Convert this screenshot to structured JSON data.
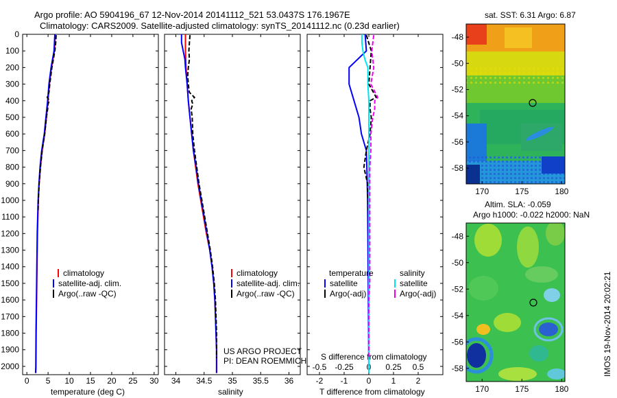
{
  "header": {
    "line1": "Argo profile: AO 5904196_67 12-Nov-2014 20141112_521 53.0437S 176.1967E",
    "line2": "Climatology: CARS2009. Satellite-adjusted climatology: synTS_20141112.nc (0.23d earlier)"
  },
  "colors": {
    "climatology": "#ff0000",
    "satellite_adj": "#0000ff",
    "argo": "#000000",
    "salinity_satellite": "#00e5ee",
    "salinity_argo": "#ee00ee"
  },
  "legend_temp": [
    "climatology",
    "satellite-adj. clim.",
    "Argo(..raw -QC)"
  ],
  "legend_sal": [
    "climatology",
    "satellite-adj. clim.",
    "Argo(..raw -QC)"
  ],
  "legend_diff": {
    "temp_header": "temperature",
    "sal_header": "salinity",
    "temp_items": [
      "satellite",
      "Argo(-adj)"
    ],
    "sal_items": [
      "satellite",
      "Argo(-adj)"
    ]
  },
  "credit": {
    "line1": "US ARGO PROJECT",
    "line2": "PI: DEAN ROEMMICH"
  },
  "sst_title": "sat. SST: 6.31  Argo: 6.87",
  "sla_title1": "Altim. SLA: -0.059",
  "sla_title2": "Argo h1000: -0.022 h2000: NaN",
  "stamp": "IMOS 19-Nov-2014 20:02:21",
  "depth_ticks": [
    "0",
    "100",
    "200",
    "300",
    "400",
    "500",
    "600",
    "700",
    "800",
    "900",
    "1000",
    "1100",
    "1200",
    "1300",
    "1400",
    "1500",
    "1600",
    "1700",
    "1800",
    "1900",
    "2000"
  ],
  "chart_data": [
    {
      "type": "line",
      "ylim": [
        0,
        2050
      ],
      "xlim": [
        -1,
        31
      ],
      "xlabel": "temperature (deg C)",
      "xticks": [
        0,
        5,
        10,
        15,
        20,
        25,
        30
      ],
      "series": [
        {
          "name": "climatology",
          "depth": [
            0,
            100,
            200,
            300,
            400,
            500,
            600,
            700,
            800,
            900,
            1000,
            1200,
            1400,
            1600,
            1800,
            2000,
            2040
          ],
          "values": [
            6.7,
            6.5,
            5.8,
            5.3,
            5.0,
            4.6,
            4.2,
            3.6,
            3.2,
            2.9,
            2.7,
            2.5,
            2.4,
            2.3,
            2.2,
            2.15,
            2.1
          ]
        },
        {
          "name": "satellite-adj. clim.",
          "depth": [
            0,
            100,
            200,
            300,
            400,
            500,
            600,
            700,
            800,
            900,
            1000,
            1200,
            1400,
            1600,
            1800,
            2000,
            2040
          ],
          "values": [
            6.6,
            6.4,
            5.7,
            5.2,
            4.9,
            4.5,
            4.1,
            3.5,
            3.1,
            2.85,
            2.65,
            2.45,
            2.35,
            2.25,
            2.15,
            2.1,
            2.05
          ]
        },
        {
          "name": "Argo(..raw -QC)",
          "depth": [
            5,
            50,
            100,
            200,
            300,
            350,
            380,
            400,
            420,
            450,
            500,
            600,
            700,
            800,
            900,
            1000,
            1060
          ],
          "values": [
            6.9,
            6.8,
            6.6,
            5.9,
            5.4,
            5.2,
            4.8,
            5.3,
            5.0,
            4.9,
            4.6,
            4.2,
            3.6,
            3.2,
            2.9,
            2.7,
            2.65
          ]
        }
      ]
    },
    {
      "type": "line",
      "ylim": [
        0,
        2050
      ],
      "xlim": [
        33.8,
        36.2
      ],
      "xlabel": "salinity",
      "xticks": [
        34,
        34.5,
        35,
        35.5,
        36
      ],
      "series": [
        {
          "name": "climatology",
          "depth": [
            0,
            100,
            200,
            300,
            400,
            500,
            600,
            700,
            800,
            900,
            1000,
            1100,
            1200,
            1300,
            1400,
            1500,
            1600,
            1700,
            1800,
            1900,
            2000,
            2040
          ],
          "values": [
            34.17,
            34.17,
            34.18,
            34.2,
            34.22,
            34.25,
            34.28,
            34.31,
            34.35,
            34.39,
            34.44,
            34.49,
            34.54,
            34.6,
            34.64,
            34.67,
            34.69,
            34.7,
            34.71,
            34.72,
            34.72,
            34.72
          ]
        },
        {
          "name": "satellite-adj. clim.",
          "depth": [
            0,
            50,
            100,
            150,
            200,
            300,
            400,
            500,
            600,
            700,
            800,
            900,
            1000,
            1100,
            1200,
            1300,
            1400,
            1500,
            1600,
            1700,
            1800,
            1900,
            2000,
            2040
          ],
          "values": [
            34.1,
            34.1,
            34.13,
            34.16,
            34.17,
            34.2,
            34.22,
            34.25,
            34.28,
            34.31,
            34.36,
            34.4,
            34.45,
            34.5,
            34.55,
            34.6,
            34.64,
            34.67,
            34.69,
            34.7,
            34.71,
            34.72,
            34.72,
            34.72
          ]
        },
        {
          "name": "Argo(..raw -QC)",
          "depth": [
            5,
            50,
            100,
            150,
            200,
            250,
            300,
            350,
            380,
            400,
            420,
            450,
            500,
            600,
            700,
            800,
            900,
            1000,
            1100,
            1200,
            1300,
            1400,
            1500,
            1600,
            1700,
            1800,
            1900,
            1950
          ],
          "values": [
            34.25,
            34.24,
            34.23,
            34.24,
            34.22,
            34.21,
            34.22,
            34.24,
            34.33,
            34.28,
            34.3,
            34.27,
            34.29,
            34.3,
            34.33,
            34.37,
            34.41,
            34.46,
            34.51,
            34.56,
            34.61,
            34.65,
            34.68,
            34.7,
            34.71,
            34.72,
            34.72,
            34.72
          ]
        }
      ]
    },
    {
      "type": "line",
      "ylim": [
        0,
        2050
      ],
      "xlim": [
        -2.5,
        3
      ],
      "xlabel": "T difference from climatology",
      "xlabel_top": "S difference from climatology",
      "xticks": [
        -2,
        -1,
        0,
        1,
        2
      ],
      "xticks_top": [
        -0.5,
        -0.25,
        0,
        0.25,
        0.5
      ],
      "series": [
        {
          "name": "temperature satellite",
          "depth": [
            0,
            100,
            200,
            300,
            400,
            500,
            600,
            700,
            800,
            1000,
            1200,
            1400,
            1600,
            1800,
            2040
          ],
          "values": [
            -0.15,
            -0.1,
            -0.8,
            -0.8,
            -0.6,
            -0.4,
            -0.3,
            -0.1,
            -0.08,
            -0.05,
            -0.04,
            -0.03,
            -0.02,
            -0.01,
            0
          ]
        },
        {
          "name": "temperature Argo(-adj)",
          "depth": [
            5,
            100,
            200,
            300,
            380,
            400,
            450,
            500,
            600,
            700,
            800,
            900,
            1000,
            1060
          ],
          "values": [
            -0.1,
            0.1,
            0.05,
            0.0,
            0.3,
            0.05,
            0.05,
            0.1,
            0.05,
            -0.1,
            -0.2,
            -0.05,
            -0.02,
            -0.02
          ]
        },
        {
          "name": "salinity satellite",
          "depth": [
            0,
            50,
            100,
            150,
            200,
            300,
            400,
            500,
            600,
            700,
            800,
            1000,
            1200,
            1400,
            1600,
            1800,
            2040
          ],
          "values": [
            -0.07,
            -0.07,
            -0.06,
            -0.04,
            -0.01,
            -0.01,
            0.0,
            0.0,
            0.0,
            0.0,
            0.0,
            0.0,
            0.0,
            0.0,
            0.0,
            0.0,
            0.0
          ]
        },
        {
          "name": "salinity Argo(-adj)",
          "depth": [
            5,
            50,
            100,
            200,
            300,
            380,
            400,
            450,
            500,
            600,
            700,
            800,
            900,
            1000,
            1100,
            1200,
            1300,
            1400,
            1500,
            1600,
            1700,
            1800,
            1900,
            1950
          ],
          "values": [
            0.05,
            0.04,
            0.03,
            0.05,
            0.02,
            0.09,
            0.06,
            0.06,
            0.04,
            0.02,
            0.02,
            0.01,
            0.01,
            0.01,
            0.01,
            0.01,
            0.01,
            0.01,
            0.01,
            0.0,
            0.0,
            0.0,
            0.0,
            0.0
          ]
        }
      ]
    },
    {
      "type": "heatmap",
      "title": "sat. SST: 6.31  Argo: 6.87",
      "xlim": [
        168,
        182
      ],
      "ylim": [
        -59.2,
        -47
      ],
      "xticks": [
        170,
        175,
        180
      ],
      "yticks": [
        -48,
        -50,
        -52,
        -54,
        -56,
        -58
      ],
      "marker": {
        "lon": 176.2,
        "lat": -53.04
      }
    },
    {
      "type": "heatmap",
      "title": "Altim. SLA: -0.059",
      "xlim": [
        168,
        182
      ],
      "ylim": [
        -59,
        -47
      ],
      "xticks": [
        170,
        175,
        180
      ],
      "yticks": [
        -48,
        -50,
        -52,
        -54,
        -56,
        -58
      ],
      "marker": {
        "lon": 176.2,
        "lat": -53.04
      }
    }
  ]
}
